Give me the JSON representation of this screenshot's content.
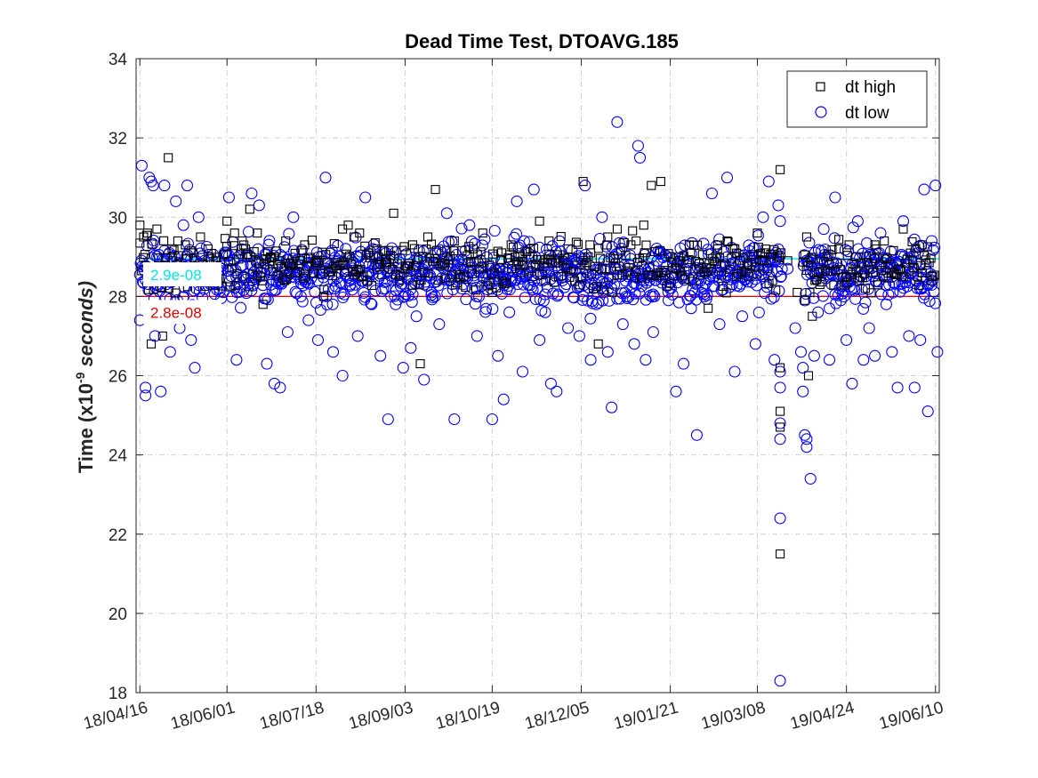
{
  "chart_data": {
    "type": "scatter",
    "title": "Dead Time Test, DTOAVG.185",
    "ylabel": {
      "main": "Time (x10",
      "exp": "-9",
      "unit": " seconds)"
    },
    "xlabel": "",
    "x_axis": {
      "type": "date",
      "start": "2018-04-14",
      "end": "2019-06-12",
      "ticks": [
        {
          "date": "2018-04-16",
          "label": "18/04/16"
        },
        {
          "date": "2018-06-01",
          "label": "18/06/01"
        },
        {
          "date": "2018-07-18",
          "label": "18/07/18"
        },
        {
          "date": "2018-09-03",
          "label": "18/09/03"
        },
        {
          "date": "2018-10-19",
          "label": "18/10/19"
        },
        {
          "date": "2018-12-05",
          "label": "18/12/05"
        },
        {
          "date": "2019-01-21",
          "label": "19/01/21"
        },
        {
          "date": "2019-03-08",
          "label": "19/03/08"
        },
        {
          "date": "2019-04-24",
          "label": "19/04/24"
        },
        {
          "date": "2019-06-10",
          "label": "19/06/10"
        }
      ]
    },
    "y_axis": {
      "ylim": [
        18,
        34
      ],
      "ticks": [
        18,
        20,
        22,
        24,
        26,
        28,
        30,
        32,
        34
      ]
    },
    "grid": true,
    "legend_position": "top-right",
    "reference_lines": [
      {
        "value": 28.95,
        "label": "2.9e-08",
        "color": "#00e5e5"
      },
      {
        "value": 28.0,
        "label": "2.8e-08",
        "color": "#e00000"
      }
    ],
    "series": [
      {
        "name": "dt high",
        "marker": "square",
        "color": "#000000",
        "points": [
          [
            "2018-04-16",
            29.8
          ],
          [
            "2018-04-18",
            29.5
          ],
          [
            "2018-04-20",
            29.6
          ],
          [
            "2018-04-22",
            26.8
          ],
          [
            "2018-04-25",
            29.7
          ],
          [
            "2018-04-28",
            27.0
          ],
          [
            "2018-05-01",
            31.5
          ],
          [
            "2018-05-03",
            29.2
          ],
          [
            "2018-05-06",
            29.4
          ],
          [
            "2018-05-10",
            29.3
          ],
          [
            "2018-05-14",
            29.1
          ],
          [
            "2018-05-18",
            29.5
          ],
          [
            "2018-05-22",
            29.0
          ],
          [
            "2018-05-26",
            28.9
          ],
          [
            "2018-06-01",
            29.9
          ],
          [
            "2018-06-05",
            29.6
          ],
          [
            "2018-06-09",
            29.4
          ],
          [
            "2018-06-13",
            30.2
          ],
          [
            "2018-06-17",
            29.6
          ],
          [
            "2018-06-20",
            27.8
          ],
          [
            "2018-06-24",
            29.0
          ],
          [
            "2018-06-28",
            28.8
          ],
          [
            "2018-07-02",
            29.4
          ],
          [
            "2018-07-07",
            28.6
          ],
          [
            "2018-07-12",
            29.3
          ],
          [
            "2018-07-18",
            28.9
          ],
          [
            "2018-07-22",
            28.0
          ],
          [
            "2018-07-27",
            28.7
          ],
          [
            "2018-08-01",
            29.7
          ],
          [
            "2018-08-04",
            29.8
          ],
          [
            "2018-08-07",
            29.5
          ],
          [
            "2018-08-10",
            29.6
          ],
          [
            "2018-08-14",
            28.4
          ],
          [
            "2018-08-19",
            29.2
          ],
          [
            "2018-08-24",
            28.8
          ],
          [
            "2018-08-28",
            30.1
          ],
          [
            "2018-09-03",
            28.7
          ],
          [
            "2018-09-07",
            29.3
          ],
          [
            "2018-09-11",
            26.3
          ],
          [
            "2018-09-15",
            29.5
          ],
          [
            "2018-09-19",
            30.7
          ],
          [
            "2018-09-24",
            28.8
          ],
          [
            "2018-09-29",
            29.4
          ],
          [
            "2018-10-04",
            28.5
          ],
          [
            "2018-10-09",
            29.2
          ],
          [
            "2018-10-14",
            29.6
          ],
          [
            "2018-10-19",
            28.1
          ],
          [
            "2018-10-24",
            29.1
          ],
          [
            "2018-10-29",
            29.3
          ],
          [
            "2018-11-03",
            28.6
          ],
          [
            "2018-11-08",
            29.0
          ],
          [
            "2018-11-13",
            29.9
          ],
          [
            "2018-11-18",
            29.4
          ],
          [
            "2018-11-23",
            28.5
          ],
          [
            "2018-11-28",
            29.2
          ],
          [
            "2018-12-05",
            28.8
          ],
          [
            "2018-12-06",
            30.9
          ],
          [
            "2018-12-10",
            29.1
          ],
          [
            "2018-12-14",
            26.8
          ],
          [
            "2018-12-19",
            29.5
          ],
          [
            "2018-12-24",
            29.7
          ],
          [
            "2018-12-29",
            28.6
          ],
          [
            "2019-01-03",
            29.4
          ],
          [
            "2019-01-07",
            29.8
          ],
          [
            "2019-01-11",
            30.8
          ],
          [
            "2019-01-16",
            30.9
          ],
          [
            "2019-01-21",
            29.0
          ],
          [
            "2019-01-26",
            28.9
          ],
          [
            "2019-01-31",
            29.3
          ],
          [
            "2019-02-05",
            28.7
          ],
          [
            "2019-02-10",
            27.7
          ],
          [
            "2019-02-15",
            29.2
          ],
          [
            "2019-02-20",
            29.4
          ],
          [
            "2019-02-25",
            28.5
          ],
          [
            "2019-03-03",
            28.8
          ],
          [
            "2019-03-08",
            29.6
          ],
          [
            "2019-03-12",
            29.1
          ],
          [
            "2019-03-16",
            28.4
          ],
          [
            "2019-03-20",
            31.2
          ],
          [
            "2019-03-20",
            26.2
          ],
          [
            "2019-03-20",
            25.1
          ],
          [
            "2019-03-20",
            24.7
          ],
          [
            "2019-03-20",
            21.5
          ],
          [
            "2019-03-24",
            28.9
          ],
          [
            "2019-03-29",
            28.1
          ],
          [
            "2019-04-02",
            27.9
          ],
          [
            "2019-04-03",
            29.5
          ],
          [
            "2019-04-04",
            26.0
          ],
          [
            "2019-04-06",
            27.5
          ],
          [
            "2019-04-10",
            28.3
          ],
          [
            "2019-04-15",
            28.8
          ],
          [
            "2019-04-20",
            29.2
          ],
          [
            "2019-04-24",
            28.5
          ],
          [
            "2019-04-29",
            29.0
          ],
          [
            "2019-05-04",
            28.2
          ],
          [
            "2019-05-09",
            29.3
          ],
          [
            "2019-05-14",
            29.4
          ],
          [
            "2019-05-19",
            28.6
          ],
          [
            "2019-05-24",
            29.7
          ],
          [
            "2019-05-29",
            28.9
          ],
          [
            "2019-06-03",
            29.3
          ],
          [
            "2019-06-08",
            28.4
          ]
        ]
      },
      {
        "name": "dt low",
        "marker": "circle",
        "color": "#0000ff",
        "points": [
          [
            "2018-04-16",
            27.4
          ],
          [
            "2018-04-17",
            31.3
          ],
          [
            "2018-04-19",
            25.5
          ],
          [
            "2018-04-19",
            25.7
          ],
          [
            "2018-04-21",
            31.0
          ],
          [
            "2018-04-22",
            30.9
          ],
          [
            "2018-04-23",
            30.8
          ],
          [
            "2018-04-24",
            27.0
          ],
          [
            "2018-04-27",
            25.6
          ],
          [
            "2018-04-29",
            30.8
          ],
          [
            "2018-05-02",
            26.6
          ],
          [
            "2018-05-05",
            30.4
          ],
          [
            "2018-05-07",
            27.2
          ],
          [
            "2018-05-09",
            29.8
          ],
          [
            "2018-05-11",
            30.8
          ],
          [
            "2018-05-13",
            26.9
          ],
          [
            "2018-05-15",
            26.2
          ],
          [
            "2018-05-17",
            30.0
          ],
          [
            "2018-05-20",
            28.9
          ],
          [
            "2018-05-24",
            27.5
          ],
          [
            "2018-05-28",
            28.2
          ],
          [
            "2018-06-02",
            30.5
          ],
          [
            "2018-06-06",
            26.4
          ],
          [
            "2018-06-10",
            28.5
          ],
          [
            "2018-06-14",
            30.6
          ],
          [
            "2018-06-18",
            30.3
          ],
          [
            "2018-06-22",
            26.3
          ],
          [
            "2018-06-26",
            25.8
          ],
          [
            "2018-06-29",
            25.7
          ],
          [
            "2018-07-03",
            27.1
          ],
          [
            "2018-07-06",
            30.0
          ],
          [
            "2018-07-10",
            28.0
          ],
          [
            "2018-07-14",
            27.4
          ],
          [
            "2018-07-19",
            26.9
          ],
          [
            "2018-07-23",
            31.0
          ],
          [
            "2018-07-27",
            26.6
          ],
          [
            "2018-08-01",
            26.0
          ],
          [
            "2018-08-05",
            28.3
          ],
          [
            "2018-08-09",
            27.0
          ],
          [
            "2018-08-13",
            30.5
          ],
          [
            "2018-08-17",
            29.2
          ],
          [
            "2018-08-21",
            26.5
          ],
          [
            "2018-08-25",
            24.9
          ],
          [
            "2018-08-29",
            27.8
          ],
          [
            "2018-09-02",
            26.2
          ],
          [
            "2018-09-06",
            26.7
          ],
          [
            "2018-09-09",
            27.5
          ],
          [
            "2018-09-13",
            25.9
          ],
          [
            "2018-09-17",
            28.1
          ],
          [
            "2018-09-21",
            27.3
          ],
          [
            "2018-09-25",
            30.1
          ],
          [
            "2018-09-29",
            24.9
          ],
          [
            "2018-10-03",
            28.2
          ],
          [
            "2018-10-07",
            29.8
          ],
          [
            "2018-10-11",
            27.0
          ],
          [
            "2018-10-15",
            28.6
          ],
          [
            "2018-10-19",
            24.9
          ],
          [
            "2018-10-22",
            26.5
          ],
          [
            "2018-10-25",
            25.4
          ],
          [
            "2018-10-28",
            27.6
          ],
          [
            "2018-11-01",
            30.4
          ],
          [
            "2018-11-04",
            26.1
          ],
          [
            "2018-11-07",
            28.3
          ],
          [
            "2018-11-10",
            30.7
          ],
          [
            "2018-11-13",
            26.9
          ],
          [
            "2018-11-16",
            27.6
          ],
          [
            "2018-11-19",
            25.8
          ],
          [
            "2018-11-22",
            25.6
          ],
          [
            "2018-11-25",
            28.4
          ],
          [
            "2018-11-28",
            27.2
          ],
          [
            "2018-12-01",
            28.9
          ],
          [
            "2018-12-04",
            27.0
          ],
          [
            "2018-12-07",
            30.8
          ],
          [
            "2018-12-10",
            26.4
          ],
          [
            "2018-12-13",
            27.8
          ],
          [
            "2018-12-16",
            30.0
          ],
          [
            "2018-12-19",
            26.6
          ],
          [
            "2018-12-21",
            25.2
          ],
          [
            "2018-12-24",
            32.4
          ],
          [
            "2018-12-27",
            27.3
          ],
          [
            "2018-12-30",
            28.5
          ],
          [
            "2019-01-02",
            26.8
          ],
          [
            "2019-01-04",
            31.8
          ],
          [
            "2019-01-05",
            31.5
          ],
          [
            "2019-01-08",
            26.4
          ],
          [
            "2019-01-12",
            27.1
          ],
          [
            "2019-01-16",
            29.1
          ],
          [
            "2019-01-20",
            27.9
          ],
          [
            "2019-01-24",
            25.6
          ],
          [
            "2019-01-28",
            26.3
          ],
          [
            "2019-02-01",
            27.7
          ],
          [
            "2019-02-04",
            24.5
          ],
          [
            "2019-02-08",
            28.0
          ],
          [
            "2019-02-12",
            30.6
          ],
          [
            "2019-02-16",
            27.3
          ],
          [
            "2019-02-20",
            31.0
          ],
          [
            "2019-02-24",
            26.1
          ],
          [
            "2019-02-28",
            27.5
          ],
          [
            "2019-03-04",
            29.0
          ],
          [
            "2019-03-07",
            26.8
          ],
          [
            "2019-03-11",
            30.0
          ],
          [
            "2019-03-14",
            30.9
          ],
          [
            "2019-03-17",
            26.4
          ],
          [
            "2019-03-19",
            30.3
          ],
          [
            "2019-03-20",
            29.9
          ],
          [
            "2019-03-20",
            26.1
          ],
          [
            "2019-03-20",
            25.7
          ],
          [
            "2019-03-20",
            24.8
          ],
          [
            "2019-03-20",
            24.4
          ],
          [
            "2019-03-20",
            22.4
          ],
          [
            "2019-03-20",
            18.3
          ],
          [
            "2019-03-24",
            28.7
          ],
          [
            "2019-03-28",
            27.2
          ],
          [
            "2019-03-31",
            26.6
          ],
          [
            "2019-04-01",
            26.2
          ],
          [
            "2019-04-01",
            25.6
          ],
          [
            "2019-04-02",
            24.5
          ],
          [
            "2019-04-03",
            24.4
          ],
          [
            "2019-04-03",
            24.2
          ],
          [
            "2019-04-05",
            23.4
          ],
          [
            "2019-04-07",
            26.5
          ],
          [
            "2019-04-09",
            27.6
          ],
          [
            "2019-04-12",
            29.7
          ],
          [
            "2019-04-15",
            26.4
          ],
          [
            "2019-04-18",
            30.5
          ],
          [
            "2019-04-21",
            27.9
          ],
          [
            "2019-04-24",
            26.9
          ],
          [
            "2019-04-27",
            25.8
          ],
          [
            "2019-04-30",
            29.9
          ],
          [
            "2019-05-03",
            26.4
          ],
          [
            "2019-05-06",
            27.2
          ],
          [
            "2019-05-09",
            26.5
          ],
          [
            "2019-05-12",
            29.6
          ],
          [
            "2019-05-15",
            27.8
          ],
          [
            "2019-05-18",
            26.6
          ],
          [
            "2019-05-21",
            25.7
          ],
          [
            "2019-05-24",
            29.9
          ],
          [
            "2019-05-27",
            27.0
          ],
          [
            "2019-05-30",
            25.7
          ],
          [
            "2019-06-02",
            26.9
          ],
          [
            "2019-06-04",
            30.7
          ],
          [
            "2019-06-06",
            25.1
          ],
          [
            "2019-06-08",
            29.4
          ],
          [
            "2019-06-10",
            30.8
          ],
          [
            "2019-06-11",
            26.6
          ]
        ],
        "dense_band": {
          "center": 28.6,
          "spread": 0.55
        }
      }
    ]
  },
  "legend": {
    "high_label": "dt high",
    "low_label": "dt low"
  }
}
